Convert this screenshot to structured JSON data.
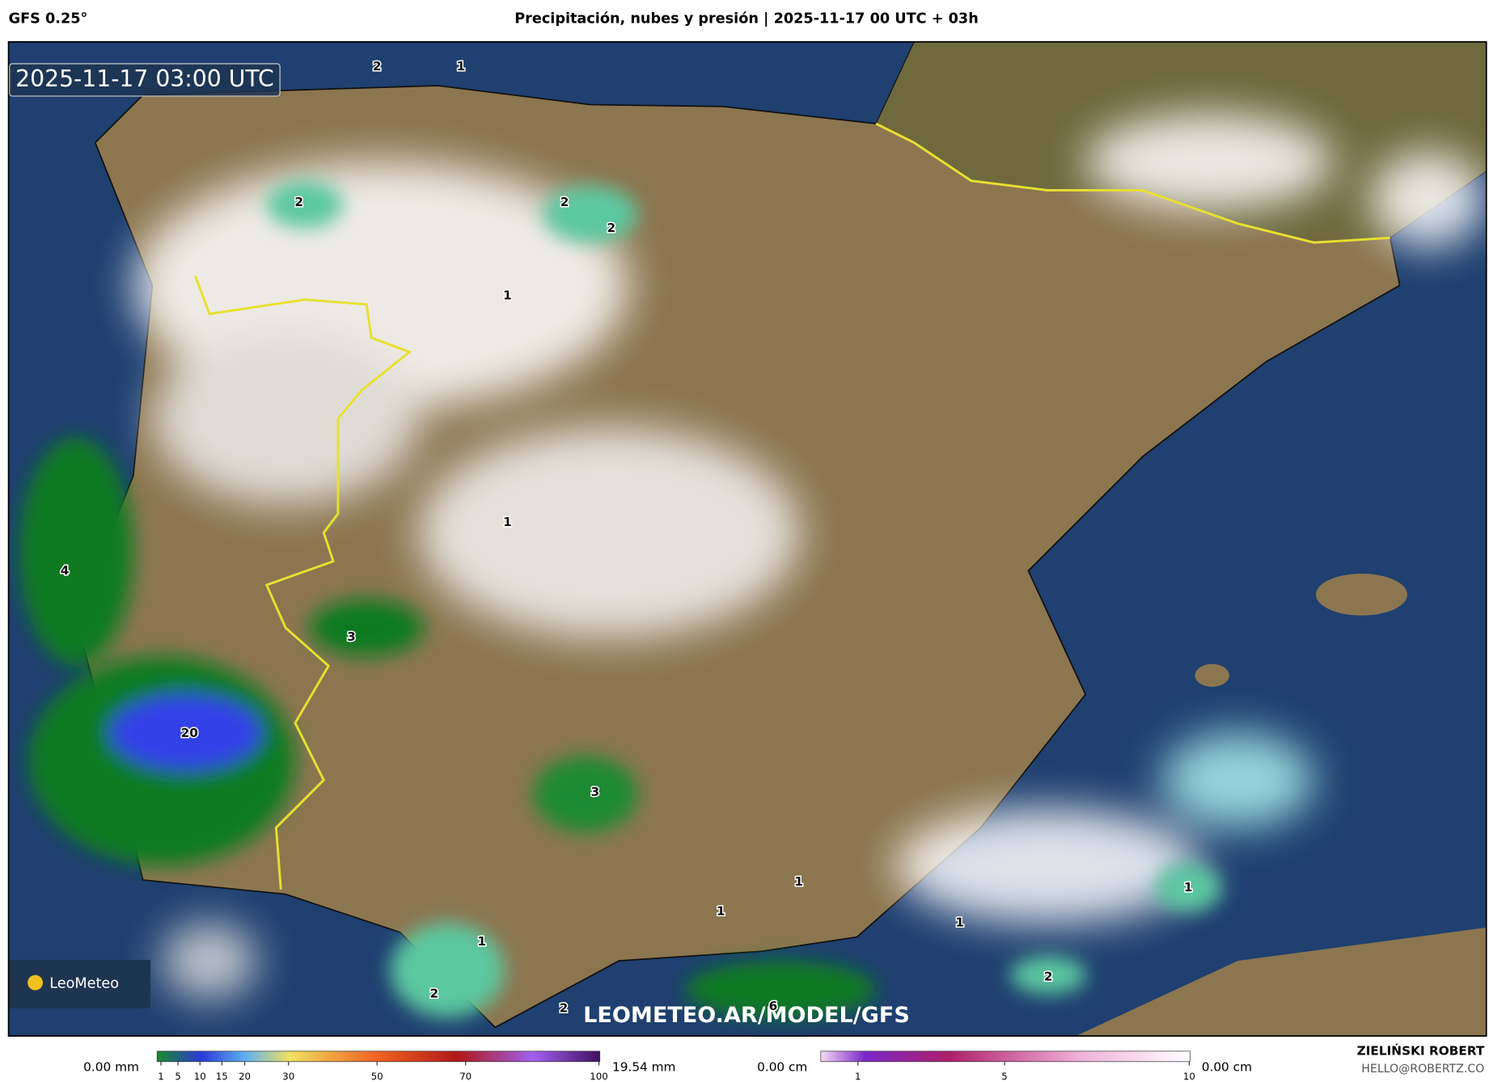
{
  "header": {
    "model": "GFS 0.25°",
    "title": "Precipitación, nubes y presión | 2025-11-17 00 UTC + 03h"
  },
  "map": {
    "timestamp": "2025-11-17 03:00 UTC",
    "watermark": "LEOMETEO.AR/MODEL/GFS",
    "logo": "LeoMeteo",
    "labels": [
      "2",
      "1",
      "2",
      "2",
      "2",
      "1",
      "1",
      "4",
      "3",
      "20",
      "3",
      "1",
      "1",
      "1",
      "1",
      "1",
      "2",
      "2",
      "2",
      "6"
    ]
  },
  "legend_precip": {
    "min": "0.00 mm",
    "max": "19.54 mm",
    "ticks": [
      1,
      5,
      10,
      15,
      20,
      30,
      50,
      70,
      100
    ]
  },
  "legend_snow": {
    "min": "0.00 cm",
    "max": "0.00 cm",
    "ticks": [
      1,
      5,
      10
    ]
  },
  "credits": {
    "author": "ZIELIŃSKI ROBERT",
    "email": "HELLO@ROBERTZ.CO"
  }
}
